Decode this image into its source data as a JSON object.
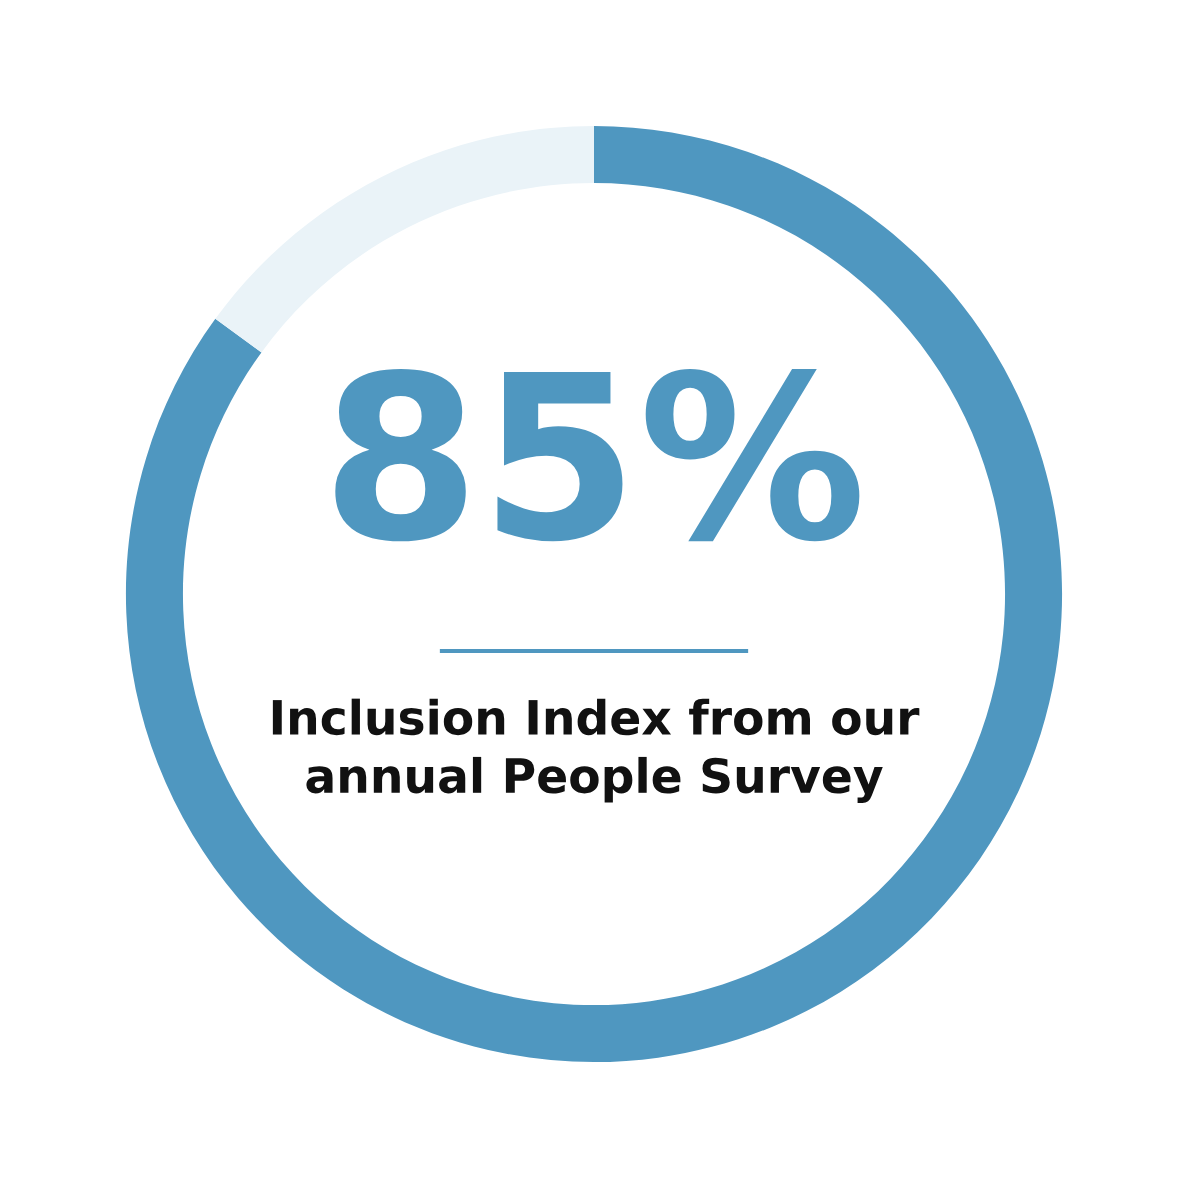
{
  "chart_data": {
    "type": "donut",
    "categories": [
      null,
      null
    ],
    "values": [
      85,
      15
    ],
    "colors": [
      "#4f97c0",
      "#eaf3f8"
    ],
    "value_labels": [
      "85%",
      null
    ],
    "annotations": [
      "Inclusion Index from our\nannual People Survey"
    ]
  }
}
